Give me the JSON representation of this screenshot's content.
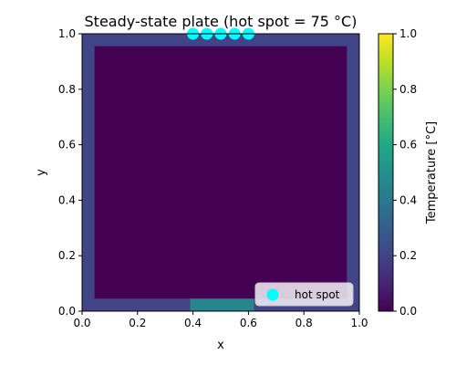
{
  "chart_data": {
    "type": "heatmap",
    "title": "Steady-state plate (hot spot = 75 °C)",
    "xlabel": "x",
    "ylabel": "y",
    "xlim": [
      0,
      1
    ],
    "ylim": [
      0,
      1
    ],
    "x_ticks": [
      "0.0",
      "0.2",
      "0.4",
      "0.6",
      "0.8",
      "1.0"
    ],
    "y_ticks": [
      "0.0",
      "0.2",
      "0.4",
      "0.6",
      "0.8",
      "1.0"
    ],
    "grid": false,
    "colormap": "viridis",
    "colorbar": {
      "label": "Temperature [°C]",
      "range": [
        0,
        1
      ],
      "ticks": [
        "0.0",
        "0.2",
        "0.4",
        "0.6",
        "0.8",
        "1.0"
      ]
    },
    "field": {
      "interior_value": 0.0,
      "boundary_value": 0.2,
      "boundary_hot_segment": {
        "edge": "bottom",
        "x_range": [
          0.39,
          0.62
        ],
        "value": 0.45
      }
    },
    "series": [
      {
        "name": "hot spot",
        "type": "scatter",
        "color": "#00ffff",
        "points": [
          [
            0.4,
            1.0
          ],
          [
            0.45,
            1.0
          ],
          [
            0.5,
            1.0
          ],
          [
            0.55,
            1.0
          ],
          [
            0.6,
            1.0
          ]
        ]
      }
    ],
    "legend": {
      "position": "lower-right",
      "entries": [
        "hot spot"
      ]
    }
  }
}
